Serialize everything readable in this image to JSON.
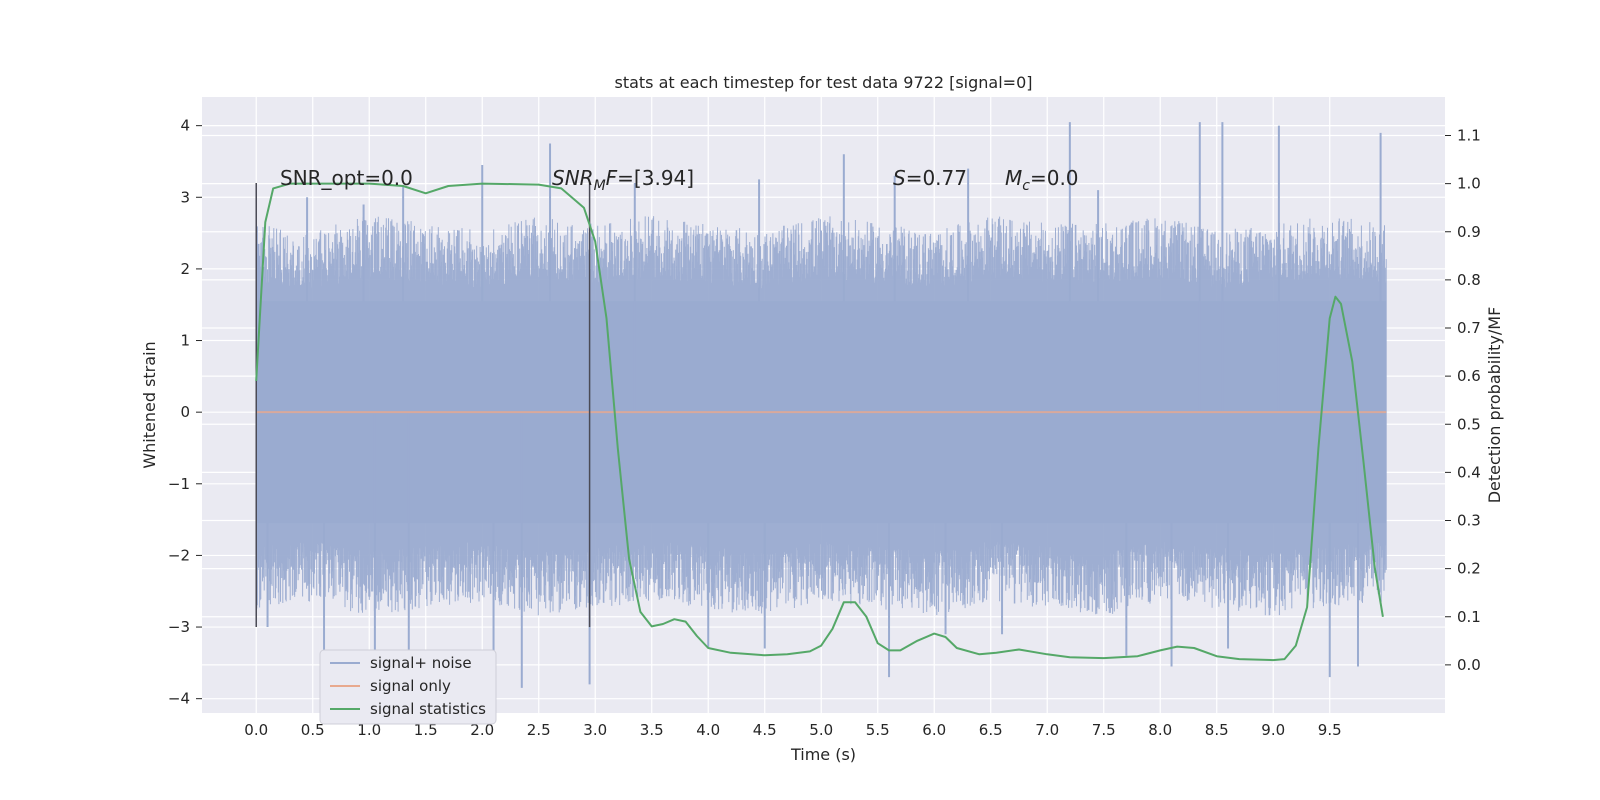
{
  "chart_data": {
    "type": "line",
    "title": "stats at each timestep for test data 9722 [signal=0]",
    "xlabel": "Time (s)",
    "ylabel": "Whitened strain",
    "y2label": "Detection probability/MF",
    "xlim": [
      -0.48,
      10.52
    ],
    "ylim": [
      -4.2,
      4.4
    ],
    "y2lim": [
      -0.1,
      1.18
    ],
    "x_ticks": [
      0.0,
      0.5,
      1.0,
      1.5,
      2.0,
      2.5,
      3.0,
      3.5,
      4.0,
      4.5,
      5.0,
      5.5,
      6.0,
      6.5,
      7.0,
      7.5,
      8.0,
      8.5,
      9.0,
      9.5
    ],
    "x_tick_labels": [
      "0.0",
      "0.5",
      "1.0",
      "1.5",
      "2.0",
      "2.5",
      "3.0",
      "3.5",
      "4.0",
      "4.5",
      "5.0",
      "5.5",
      "6.0",
      "6.5",
      "7.0",
      "7.5",
      "8.0",
      "8.5",
      "9.0",
      "9.5"
    ],
    "y_ticks": [
      -4,
      -3,
      -2,
      -1,
      0,
      1,
      2,
      3,
      4
    ],
    "y_tick_labels": [
      "−4",
      "−3",
      "−2",
      "−1",
      "0",
      "1",
      "2",
      "3",
      "4"
    ],
    "y2_ticks": [
      0.0,
      0.1,
      0.2,
      0.3,
      0.4,
      0.5,
      0.6,
      0.7,
      0.8,
      0.9,
      1.0,
      1.1
    ],
    "y2_tick_labels": [
      "0.0",
      "0.1",
      "0.2",
      "0.3",
      "0.4",
      "0.5",
      "0.6",
      "0.7",
      "0.8",
      "0.9",
      "1.0",
      "1.1"
    ],
    "grid": true,
    "legend_placement": "lower-left",
    "legend": [
      "signal+ noise",
      "signal only",
      "signal statistics"
    ],
    "colors": {
      "noise": "#9aabd0",
      "signal_only": "#e8a98e",
      "statistics": "#55a868",
      "background": "#eaeaf2",
      "markers": "#4a4a55"
    },
    "annotations": {
      "snr_opt": "SNR_opt=0.0",
      "snr_mf_base": "SNR",
      "snr_mf_sub": "M",
      "snr_mf_rest": "F=[3.94]",
      "s_italic": "S",
      "s_rest": "=0.77",
      "mc_base": "M",
      "mc_sub": "c",
      "mc_rest": "=0.0"
    },
    "vertical_markers": [
      {
        "x": 0.0,
        "y_range": [
          -3.0,
          3.2
        ]
      },
      {
        "x": 2.95,
        "y_range": [
          -3.0,
          3.2
        ]
      }
    ],
    "signal_noise": {
      "x_range": [
        0.0,
        10.0
      ],
      "band_max": [
        2.4,
        2.3,
        2.5,
        2.4,
        2.3,
        2.5,
        2.4,
        2.5,
        2.4,
        2.3,
        2.5,
        2.4,
        2.3,
        2.5,
        2.4,
        2.4,
        2.5,
        2.3,
        2.4,
        2.5,
        2.4
      ],
      "band_min": [
        -2.5,
        -2.4,
        -2.6,
        -2.5,
        -2.4,
        -2.6,
        -2.5,
        -2.4,
        -2.5,
        -2.6,
        -2.4,
        -2.5,
        -2.6,
        -2.4,
        -2.5,
        -2.6,
        -2.4,
        -2.5,
        -2.6,
        -2.5,
        -2.4
      ],
      "peaks": [
        {
          "x": 0.02,
          "y": 2.35
        },
        {
          "x": 0.45,
          "y": 3.0
        },
        {
          "x": 0.95,
          "y": 2.9
        },
        {
          "x": 1.3,
          "y": 3.15
        },
        {
          "x": 2.0,
          "y": 3.45
        },
        {
          "x": 2.6,
          "y": 3.75
        },
        {
          "x": 3.35,
          "y": 3.2
        },
        {
          "x": 4.45,
          "y": 3.25
        },
        {
          "x": 5.2,
          "y": 3.6
        },
        {
          "x": 5.65,
          "y": 3.3
        },
        {
          "x": 6.3,
          "y": 3.4
        },
        {
          "x": 7.2,
          "y": 4.05
        },
        {
          "x": 7.45,
          "y": 3.1
        },
        {
          "x": 8.35,
          "y": 4.05
        },
        {
          "x": 8.55,
          "y": 4.05
        },
        {
          "x": 9.05,
          "y": 4.0
        },
        {
          "x": 9.95,
          "y": 3.9
        }
      ],
      "troughs": [
        {
          "x": 0.1,
          "y": -3.0
        },
        {
          "x": 0.6,
          "y": -3.5
        },
        {
          "x": 1.05,
          "y": -3.45
        },
        {
          "x": 1.35,
          "y": -3.4
        },
        {
          "x": 2.1,
          "y": -3.5
        },
        {
          "x": 2.35,
          "y": -3.85
        },
        {
          "x": 2.95,
          "y": -3.8
        },
        {
          "x": 4.0,
          "y": -3.3
        },
        {
          "x": 4.5,
          "y": -3.3
        },
        {
          "x": 5.6,
          "y": -3.7
        },
        {
          "x": 6.1,
          "y": -3.1
        },
        {
          "x": 6.6,
          "y": -3.1
        },
        {
          "x": 7.7,
          "y": -3.4
        },
        {
          "x": 8.1,
          "y": -3.55
        },
        {
          "x": 8.6,
          "y": -3.3
        },
        {
          "x": 9.5,
          "y": -3.7
        },
        {
          "x": 9.75,
          "y": -3.55
        }
      ]
    },
    "signal_only": {
      "x": [
        0.0,
        10.0
      ],
      "y": [
        0.0,
        0.0
      ]
    },
    "statistics": {
      "x": [
        0.0,
        0.08,
        0.15,
        0.3,
        0.5,
        1.0,
        1.3,
        1.5,
        1.7,
        2.0,
        2.5,
        2.7,
        2.9,
        3.0,
        3.1,
        3.2,
        3.3,
        3.4,
        3.5,
        3.6,
        3.7,
        3.8,
        3.9,
        4.0,
        4.2,
        4.5,
        4.7,
        4.9,
        5.0,
        5.1,
        5.2,
        5.3,
        5.4,
        5.5,
        5.6,
        5.7,
        5.85,
        6.0,
        6.1,
        6.2,
        6.4,
        6.55,
        6.75,
        7.0,
        7.2,
        7.5,
        7.8,
        8.0,
        8.15,
        8.3,
        8.5,
        8.7,
        9.0,
        9.1,
        9.2,
        9.3,
        9.4,
        9.5,
        9.55,
        9.6,
        9.7,
        9.8,
        9.9,
        9.97
      ],
      "y": [
        0.59,
        0.92,
        0.99,
        1.0,
        1.0,
        1.0,
        0.995,
        0.98,
        0.995,
        1.0,
        0.998,
        0.99,
        0.95,
        0.88,
        0.72,
        0.45,
        0.22,
        0.11,
        0.08,
        0.085,
        0.095,
        0.09,
        0.06,
        0.035,
        0.025,
        0.02,
        0.022,
        0.028,
        0.04,
        0.075,
        0.13,
        0.13,
        0.1,
        0.045,
        0.03,
        0.03,
        0.05,
        0.065,
        0.058,
        0.035,
        0.022,
        0.025,
        0.032,
        0.022,
        0.016,
        0.014,
        0.018,
        0.03,
        0.038,
        0.035,
        0.018,
        0.012,
        0.01,
        0.012,
        0.04,
        0.12,
        0.45,
        0.72,
        0.765,
        0.75,
        0.63,
        0.42,
        0.2,
        0.1
      ]
    }
  }
}
